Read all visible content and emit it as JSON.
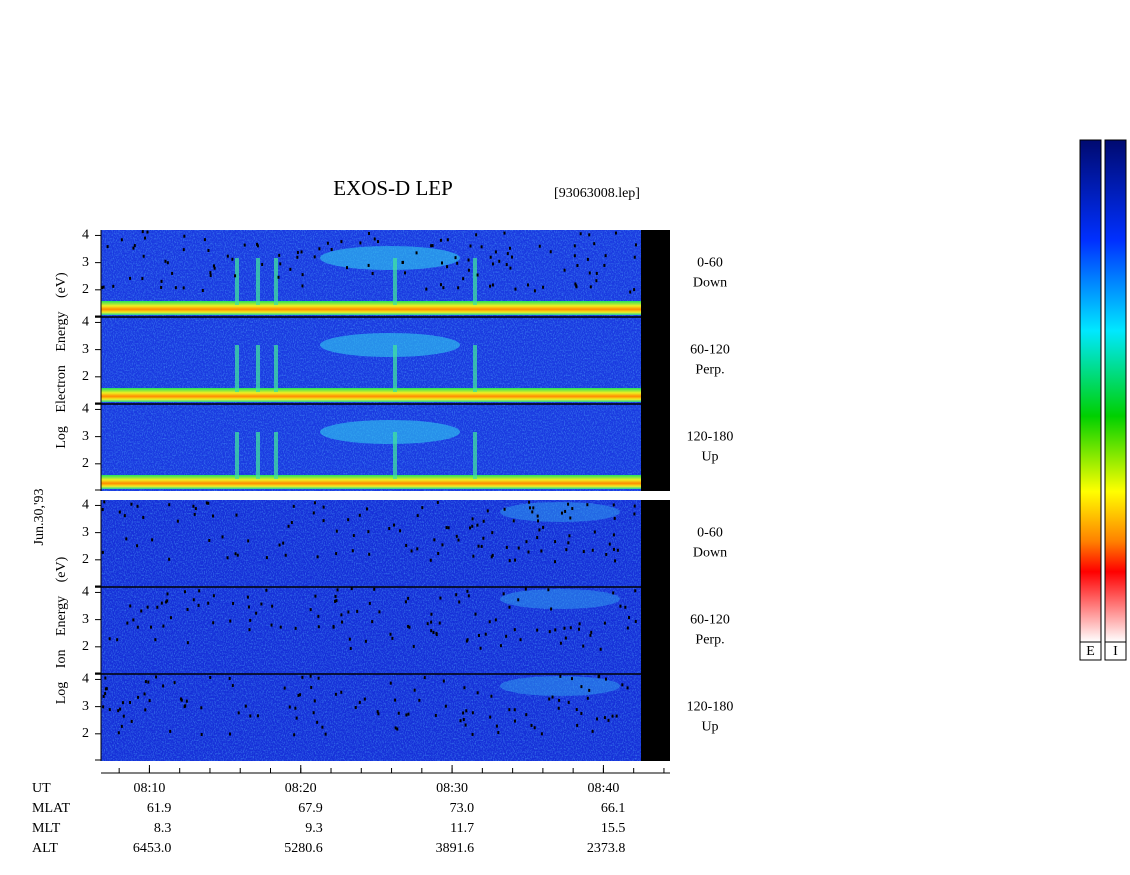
{
  "chart_data": {
    "type": "spectrogram",
    "title": "EXOS-D LEP",
    "file": "[93063008.lep]",
    "date": "Jun.30,'93",
    "groups": [
      {
        "ylabel": "Log Electron Energy (eV)",
        "kind": "electron",
        "panels": [
          {
            "label": [
              "0-60",
              "Down"
            ]
          },
          {
            "label": [
              "60-120",
              "Perp."
            ]
          },
          {
            "label": [
              "120-180",
              "Up"
            ]
          }
        ]
      },
      {
        "ylabel": "Log Ion Energy (eV)",
        "kind": "ion",
        "panels": [
          {
            "label": [
              "0-60",
              "Down"
            ]
          },
          {
            "label": [
              "60-120",
              "Perp."
            ]
          },
          {
            "label": [
              "120-180",
              "Up"
            ]
          }
        ]
      }
    ],
    "ylim": [
      1,
      4.2
    ],
    "yticks": [
      2,
      3,
      4
    ],
    "xlim": [
      486.8,
      524.4
    ],
    "xticks": [
      {
        "value": 490,
        "label": "08:10"
      },
      {
        "value": 500,
        "label": "08:20"
      },
      {
        "value": 510,
        "label": "08:30"
      },
      {
        "value": 520,
        "label": "08:40"
      }
    ],
    "xminor": 2,
    "xlabel": "UT",
    "orbit": [
      {
        "name": "MLAT",
        "values": [
          "61.9",
          "67.9",
          "73.0",
          "66.1"
        ]
      },
      {
        "name": "MLT",
        "values": [
          "8.3",
          "9.3",
          "11.7",
          "15.5"
        ]
      },
      {
        "name": "ALT",
        "values": [
          "6453.0",
          "5280.6",
          "3891.6",
          "2373.8"
        ]
      }
    ],
    "colorbars": [
      "E",
      "I"
    ]
  }
}
